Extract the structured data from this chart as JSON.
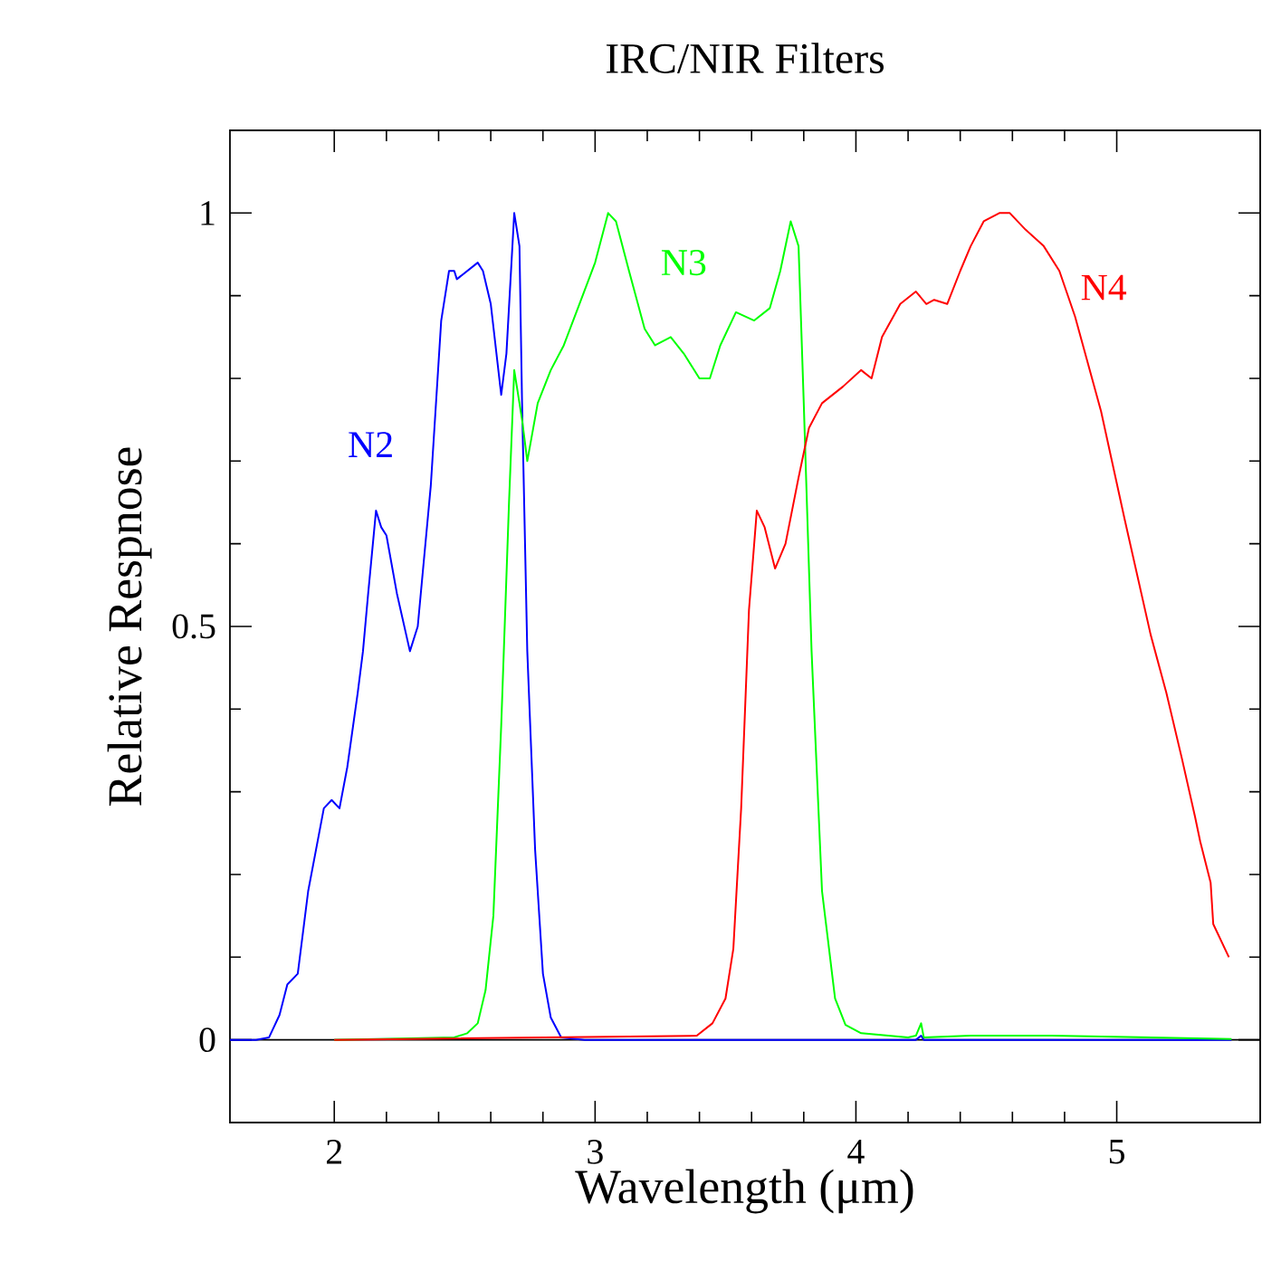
{
  "chart_data": {
    "type": "line",
    "title": "IRC/NIR Filters",
    "xlabel": "Wavelength (μm)",
    "ylabel": "Relative Respnose",
    "xlim": [
      1.6,
      5.55
    ],
    "ylim": [
      -0.1,
      1.1
    ],
    "xticks": [
      2,
      3,
      4,
      5
    ],
    "yticks": [
      0,
      0.5,
      1
    ],
    "tick_labels": "xy",
    "ref_lines": [
      {
        "axis": "y",
        "value": 0,
        "color": "#000000"
      }
    ],
    "series": [
      {
        "name": "N2",
        "color": "#0000ff",
        "x": [
          1.6,
          1.7,
          1.75,
          1.79,
          1.82,
          1.86,
          1.9,
          1.93,
          1.96,
          1.99,
          2.02,
          2.05,
          2.09,
          2.11,
          2.13,
          2.16,
          2.18,
          2.2,
          2.24,
          2.29,
          2.32,
          2.37,
          2.41,
          2.44,
          2.46,
          2.47,
          2.51,
          2.55,
          2.57,
          2.6,
          2.64,
          2.66,
          2.69,
          2.71,
          2.72,
          2.74,
          2.77,
          2.8,
          2.83,
          2.87,
          2.96,
          4.23,
          4.25,
          4.26,
          5.44
        ],
        "values": [
          0,
          0,
          0.003,
          0.03,
          0.067,
          0.08,
          0.18,
          0.23,
          0.28,
          0.29,
          0.28,
          0.33,
          0.42,
          0.47,
          0.54,
          0.64,
          0.62,
          0.61,
          0.54,
          0.47,
          0.5,
          0.67,
          0.87,
          0.93,
          0.93,
          0.92,
          0.93,
          0.94,
          0.93,
          0.89,
          0.78,
          0.83,
          1.0,
          0.96,
          0.77,
          0.47,
          0.23,
          0.08,
          0.027,
          0.003,
          0,
          0,
          0.005,
          0,
          0
        ]
      },
      {
        "name": "N3",
        "color": "#00ff00",
        "x": [
          2.0,
          2.46,
          2.51,
          2.55,
          2.58,
          2.61,
          2.64,
          2.67,
          2.69,
          2.72,
          2.74,
          2.78,
          2.83,
          2.88,
          2.94,
          3.0,
          3.05,
          3.08,
          3.13,
          3.19,
          3.23,
          3.29,
          3.34,
          3.4,
          3.44,
          3.48,
          3.54,
          3.61,
          3.67,
          3.71,
          3.75,
          3.78,
          3.8,
          3.83,
          3.87,
          3.92,
          3.96,
          4.02,
          4.2,
          4.23,
          4.25,
          4.26,
          4.44,
          4.75,
          5.44
        ],
        "values": [
          0,
          0.003,
          0.008,
          0.02,
          0.06,
          0.15,
          0.38,
          0.65,
          0.81,
          0.75,
          0.7,
          0.77,
          0.81,
          0.84,
          0.89,
          0.94,
          1.0,
          0.99,
          0.93,
          0.86,
          0.84,
          0.85,
          0.83,
          0.8,
          0.8,
          0.84,
          0.88,
          0.87,
          0.885,
          0.93,
          0.99,
          0.96,
          0.77,
          0.47,
          0.18,
          0.05,
          0.018,
          0.008,
          0.003,
          0.005,
          0.02,
          0.003,
          0.005,
          0.005,
          0.001
        ]
      },
      {
        "name": "N4",
        "color": "#ff0000",
        "x": [
          2.0,
          3.39,
          3.45,
          3.5,
          3.53,
          3.56,
          3.59,
          3.62,
          3.65,
          3.69,
          3.73,
          3.78,
          3.82,
          3.87,
          3.95,
          4.02,
          4.06,
          4.1,
          4.17,
          4.23,
          4.27,
          4.3,
          4.35,
          4.4,
          4.44,
          4.49,
          4.55,
          4.59,
          4.65,
          4.72,
          4.78,
          4.84,
          4.94,
          5.03,
          5.13,
          5.19,
          5.25,
          5.3,
          5.32,
          5.36,
          5.37,
          5.43
        ],
        "values": [
          0,
          0.005,
          0.02,
          0.05,
          0.11,
          0.28,
          0.52,
          0.64,
          0.62,
          0.57,
          0.6,
          0.68,
          0.74,
          0.77,
          0.79,
          0.81,
          0.8,
          0.85,
          0.89,
          0.905,
          0.89,
          0.895,
          0.89,
          0.93,
          0.96,
          0.99,
          1.0,
          1.0,
          0.98,
          0.96,
          0.93,
          0.875,
          0.76,
          0.63,
          0.49,
          0.42,
          0.34,
          0.27,
          0.24,
          0.19,
          0.14,
          0.1
        ]
      }
    ]
  }
}
